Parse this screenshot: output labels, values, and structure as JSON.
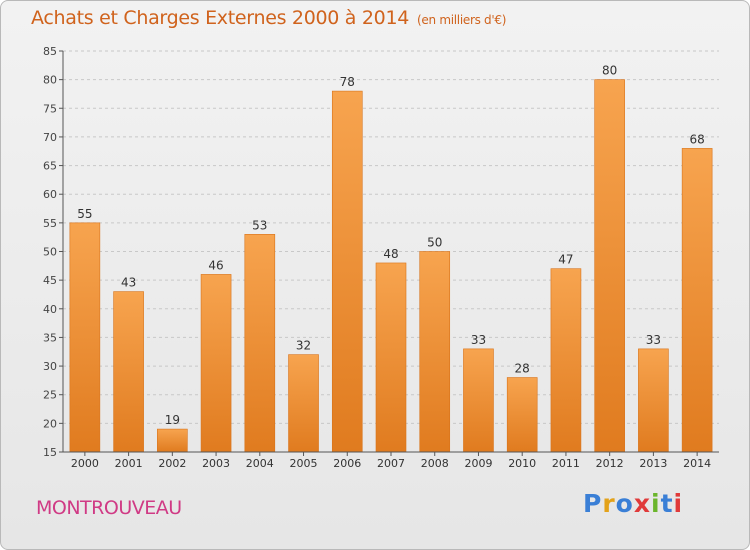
{
  "header": {
    "title": "Achats et Charges Externes 2000 à 2014",
    "unit": "(en milliers d'€)"
  },
  "footer": {
    "commune": "MONTROUVEAU",
    "logo": "Proxiti"
  },
  "colors": {
    "title": "#d0631d",
    "commune": "#d03a85",
    "bar_light": "#f7a44f",
    "bar_dark": "#e07b1f",
    "axis": "#555555",
    "grid": "#c8c8c8",
    "logo_letters": [
      "#3a7fd6",
      "#e3a21a",
      "#3a7fd6",
      "#e03a3a",
      "#6bb52c",
      "#3a7fd6",
      "#e03a3a"
    ]
  },
  "chart_data": {
    "type": "bar",
    "categories": [
      "2000",
      "2001",
      "2002",
      "2003",
      "2004",
      "2005",
      "2006",
      "2007",
      "2008",
      "2009",
      "2010",
      "2011",
      "2012",
      "2013",
      "2014"
    ],
    "values": [
      55,
      43,
      19,
      46,
      53,
      32,
      78,
      48,
      50,
      33,
      28,
      47,
      80,
      33,
      68
    ],
    "ylim": [
      15,
      85
    ],
    "yticks": [
      15,
      20,
      25,
      30,
      35,
      40,
      45,
      50,
      55,
      60,
      65,
      70,
      75,
      80,
      85
    ],
    "grid": true,
    "title": "Achats et Charges Externes 2000 à 2014",
    "xlabel": "",
    "ylabel": ""
  }
}
